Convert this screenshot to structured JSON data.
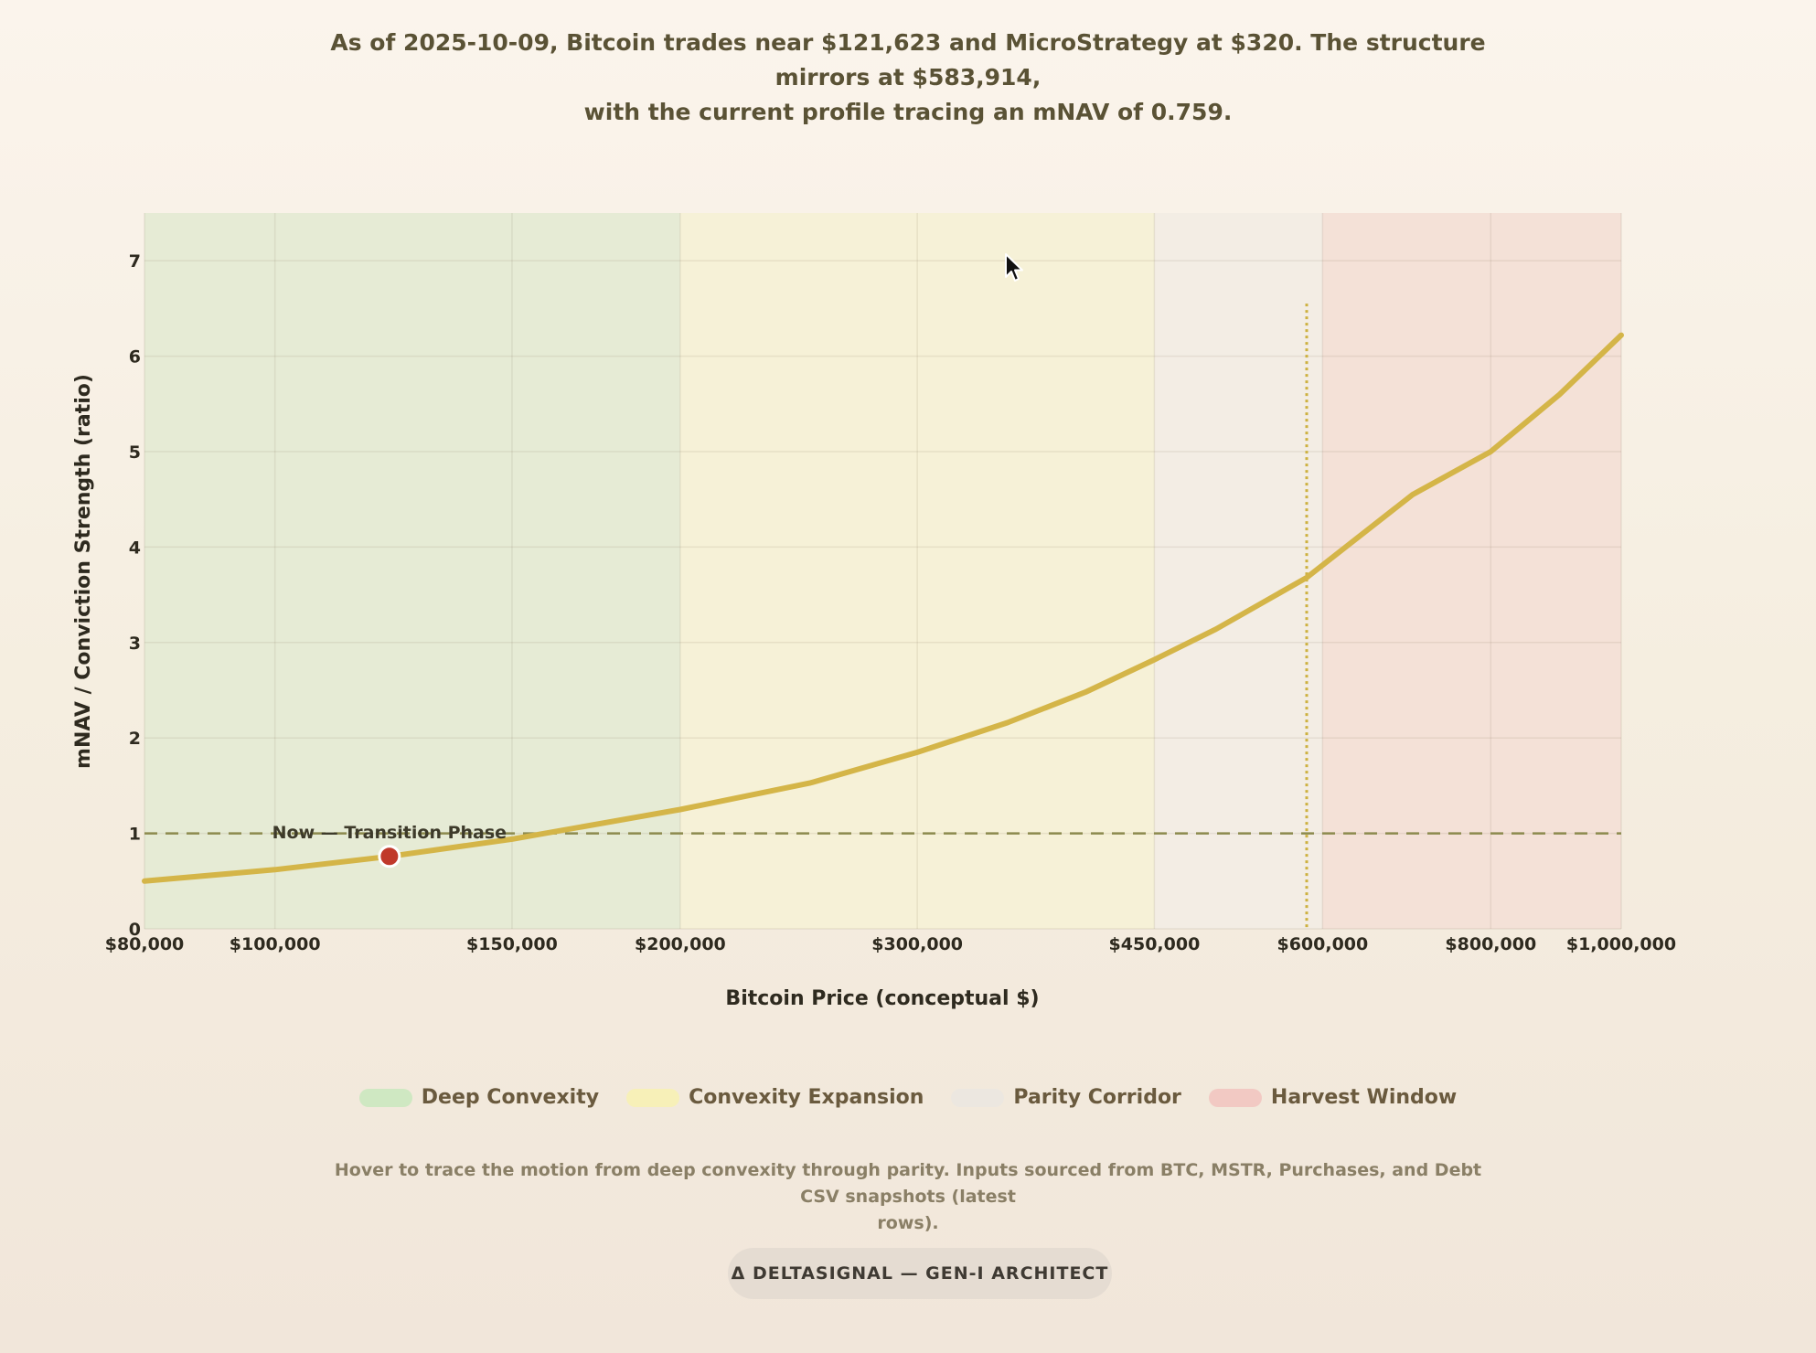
{
  "summary": {
    "line1": "As of 2025-10-09, Bitcoin trades near $121,623 and MicroStrategy at $320. The structure mirrors at $583,914,",
    "line2": "with the current profile tracing an mNAV of 0.759."
  },
  "chart_data": {
    "type": "line",
    "xlabel": "Bitcoin Price (conceptual $)",
    "ylabel": "mNAV / Conviction Strength (ratio)",
    "x_scale": "log",
    "xlim": [
      80000,
      1000000
    ],
    "ylim": [
      0,
      7.5
    ],
    "x_ticks": [
      80000,
      100000,
      150000,
      200000,
      300000,
      450000,
      600000,
      800000,
      1000000
    ],
    "x_tick_labels": [
      "$80,000",
      "$100,000",
      "$150,000",
      "$200,000",
      "$300,000",
      "$450,000",
      "$600,000",
      "$800,000",
      "$1,000,000"
    ],
    "y_ticks": [
      0,
      1,
      2,
      3,
      4,
      5,
      6,
      7
    ],
    "y_tick_labels": [
      "0",
      "1",
      "2",
      "3",
      "4",
      "5",
      "6",
      "7"
    ],
    "grid": true,
    "series": [
      {
        "color": "#d4b548",
        "x": [
          80000,
          100000,
          121623,
          150000,
          200000,
          250000,
          300000,
          350000,
          400000,
          450000,
          500000,
          583914,
          700000,
          800000,
          900000,
          1000000
        ],
        "y": [
          0.5,
          0.62,
          0.759,
          0.94,
          1.25,
          1.53,
          1.85,
          2.16,
          2.48,
          2.82,
          3.14,
          3.68,
          4.55,
          5.0,
          5.6,
          6.22
        ]
      }
    ],
    "zones": [
      {
        "label": "Deep Convexity",
        "from": 80000,
        "to": 200000,
        "color": "#e6ebd5",
        "swatch": "#cfe8c2"
      },
      {
        "label": "Convexity Expansion",
        "from": 200000,
        "to": 450000,
        "color": "#f6f1d7",
        "swatch": "#f7f0b8"
      },
      {
        "label": "Parity Corridor",
        "from": 450000,
        "to": 600000,
        "color": "#f3ede4",
        "swatch": "#ece7e0"
      },
      {
        "label": "Harvest Window",
        "from": 600000,
        "to": 1000000,
        "color": "#f4e1d7",
        "swatch": "#f2c9c3"
      }
    ],
    "parity_line": {
      "y": 1,
      "color": "#8c8a4e"
    },
    "mirror_line": {
      "x": 583914,
      "y_top": 6.55,
      "color": "#cdb13f"
    },
    "current_point": {
      "x": 121623,
      "y": 0.759,
      "label": "Now — Transition Phase",
      "color": "#c0392b"
    }
  },
  "footnote": {
    "line1": "Hover to trace the motion from deep convexity through parity. Inputs sourced from BTC, MSTR, Purchases, and Debt CSV snapshots (latest",
    "line2": "rows)."
  },
  "badge": {
    "label": "Δ DELTASIGNAL — GEN-I ARCHITECT"
  }
}
